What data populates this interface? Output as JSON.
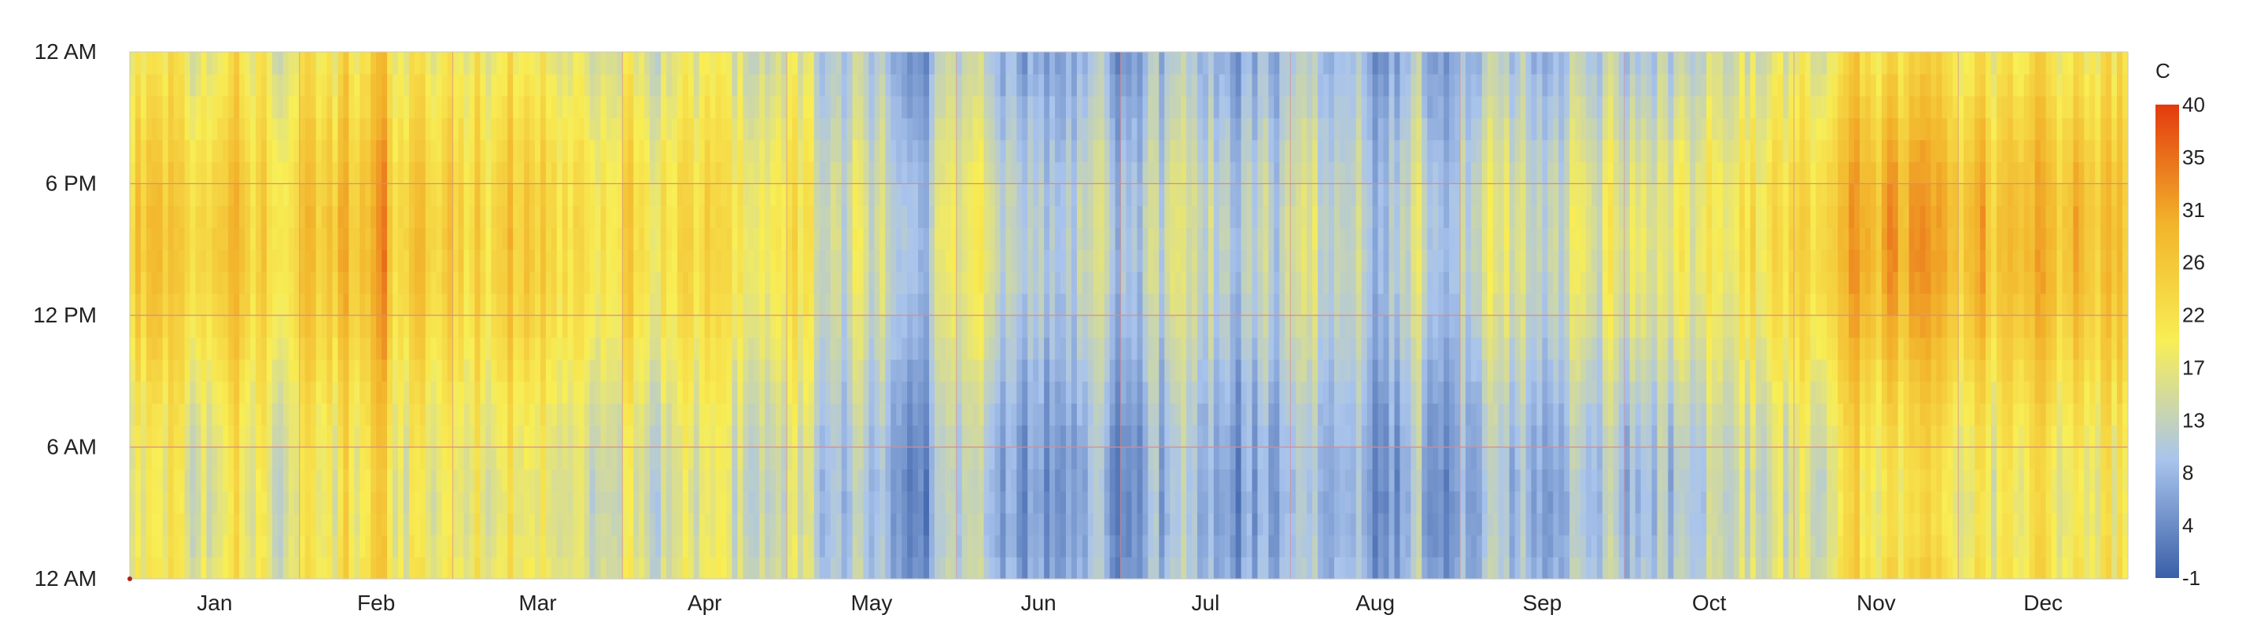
{
  "chart_data": {
    "type": "heatmap",
    "title": "",
    "colorbar": {
      "unit_label": "C",
      "ticks": [
        "40",
        "35",
        "31",
        "26",
        "22",
        "17",
        "13",
        "8",
        "4",
        "-1"
      ],
      "min": -1,
      "max": 40,
      "colors": [
        "#3a5fa8",
        "#a9c4ec",
        "#f8ee55",
        "#f2b32b",
        "#e33a0e"
      ]
    },
    "y_axis": {
      "tick_labels": [
        "12 AM",
        "6 PM",
        "12 PM",
        "6 AM",
        "12 AM"
      ],
      "hours_top_to_bottom": [
        24,
        18,
        12,
        6,
        0
      ]
    },
    "x_axis": {
      "month_labels": [
        "Jan",
        "Feb",
        "Mar",
        "Apr",
        "May",
        "Jun",
        "Jul",
        "Aug",
        "Sep",
        "Oct",
        "Nov",
        "Dec"
      ],
      "days_in_month": [
        31,
        28,
        31,
        30,
        31,
        30,
        31,
        31,
        30,
        31,
        30,
        31
      ]
    },
    "grid": {
      "hour_lines": [
        6,
        12,
        18
      ],
      "month_dividers": true,
      "color": "#d98a8a"
    },
    "data_description": "hourly temperature (C) for each day of the year (365 days x 24 hours)",
    "daily_mean_by_month_c": [
      23,
      23,
      22,
      19,
      12,
      8,
      9,
      8,
      12,
      16,
      22,
      24
    ],
    "daily_range_by_month_c": [
      8,
      8,
      8,
      7,
      6,
      6,
      6,
      6,
      7,
      8,
      9,
      9
    ],
    "cell_rows": 24,
    "cell_cols": 365
  }
}
